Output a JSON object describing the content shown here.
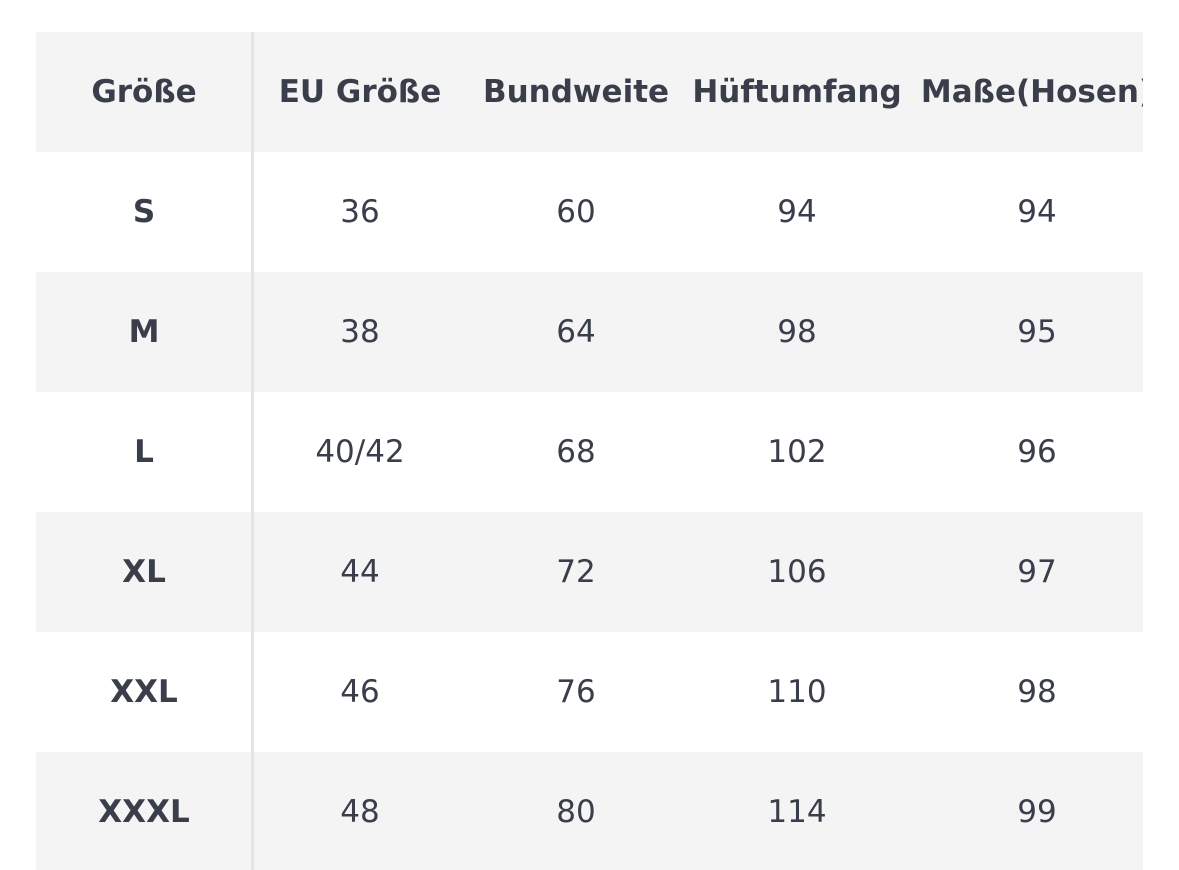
{
  "table": {
    "header": [
      "Größe",
      "EU Größe",
      "Bundweite",
      "Hüftumfang",
      "Maße(Hosen)"
    ],
    "rows": [
      [
        "S",
        "36",
        "60",
        "94",
        "94"
      ],
      [
        "M",
        "38",
        "64",
        "98",
        "95"
      ],
      [
        "L",
        "40/42",
        "68",
        "102",
        "96"
      ],
      [
        "XL",
        "44",
        "72",
        "106",
        "97"
      ],
      [
        "XXL",
        "46",
        "76",
        "110",
        "98"
      ],
      [
        "XXXL",
        "48",
        "80",
        "114",
        "99"
      ]
    ]
  }
}
